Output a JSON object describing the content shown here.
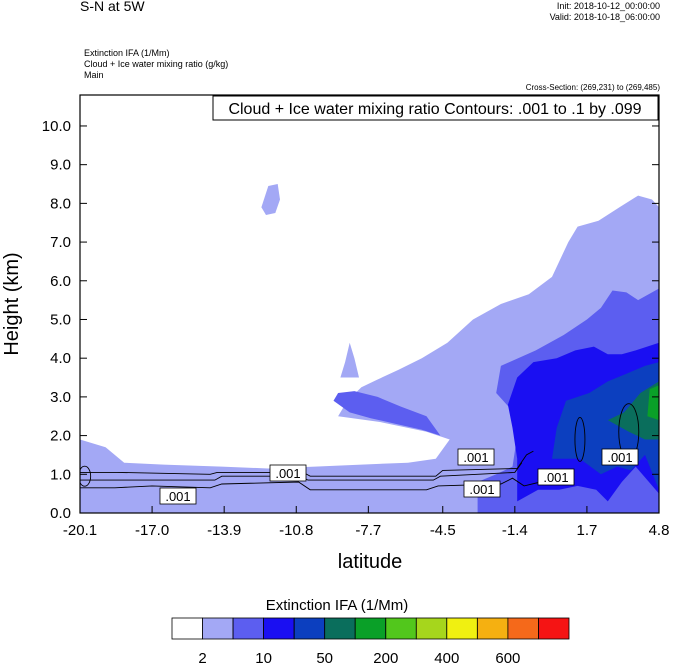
{
  "header": {
    "title": "S-N at 5W",
    "init": "Init: 2018-10-12_00:00:00",
    "valid": "Valid: 2018-10-18_06:00:00",
    "var_line1": "Extinction IFA   (1/Mm)",
    "var_line2": "Cloud + Ice water mixing ratio   (g/kg)",
    "var_line3": "Main",
    "cross_section": "Cross-Section: (269,231) to (269,485)"
  },
  "contour_info": "Cloud + Ice water mixing ratio Contours: .001 to .1 by .099",
  "contour_labels": [
    ".001",
    ".001",
    ".001",
    ".001",
    ".001",
    ".001"
  ],
  "colorbar": {
    "title": "Extinction IFA  (1/Mm)",
    "colors": [
      "#ffffff",
      "#a3a8f5",
      "#5c5ef0",
      "#1a0ff2",
      "#0c3fbf",
      "#0a6e5c",
      "#0aa028",
      "#52c71c",
      "#a6d61c",
      "#f0f011",
      "#f5b011",
      "#f5691a",
      "#f51414"
    ],
    "tick_labels": [
      "2",
      "10",
      "50",
      "200",
      "400",
      "600"
    ]
  },
  "chart_data": {
    "type": "contour",
    "title": "Cloud + Ice water mixing ratio Contours: .001 to .1 by .099",
    "xlabel": "latitude",
    "ylabel": "Height (km)",
    "xlim": [
      -20.1,
      4.8
    ],
    "ylim": [
      0.0,
      10.8
    ],
    "x_ticks": [
      "-20.1",
      "-17.0",
      "-13.9",
      "-10.8",
      "-7.7",
      "-4.5",
      "-1.4",
      "1.7",
      "4.8"
    ],
    "y_ticks": [
      "0.0",
      "1.0",
      "2.0",
      "3.0",
      "4.0",
      "5.0",
      "6.0",
      "7.0",
      "8.0",
      "9.0",
      "10.0"
    ],
    "x_tick_values": [
      -20.1,
      -17.0,
      -13.9,
      -10.8,
      -7.7,
      -4.5,
      -1.4,
      1.7,
      4.8
    ],
    "y_tick_values": [
      0,
      1,
      2,
      3,
      4,
      5,
      6,
      7,
      8,
      9,
      10
    ],
    "filled_regions": [
      {
        "level": "2-10",
        "color": "#a3a8f5",
        "points": [
          [
            -20.1,
            0
          ],
          [
            -20.1,
            1.9
          ],
          [
            -19.0,
            1.7
          ],
          [
            -18.2,
            1.3
          ],
          [
            -16.5,
            1.25
          ],
          [
            -14,
            1.2
          ],
          [
            -12,
            1.15
          ],
          [
            -10,
            1.2
          ],
          [
            -8,
            1.25
          ],
          [
            -6,
            1.3
          ],
          [
            -4.8,
            1.4
          ],
          [
            -4.2,
            1.9
          ],
          [
            -5.2,
            2.1
          ],
          [
            -7.2,
            2.35
          ],
          [
            -9.0,
            2.5
          ],
          [
            -8.6,
            2.9
          ],
          [
            -8.0,
            3.25
          ],
          [
            -7.3,
            3.45
          ],
          [
            -6.4,
            3.7
          ],
          [
            -5.4,
            4.0
          ],
          [
            -4.3,
            4.4
          ],
          [
            -3.2,
            5.0
          ],
          [
            -2.0,
            5.4
          ],
          [
            -0.8,
            5.65
          ],
          [
            0.2,
            6.1
          ],
          [
            0.9,
            7.0
          ],
          [
            1.3,
            7.4
          ],
          [
            2.2,
            7.55
          ],
          [
            3.1,
            7.9
          ],
          [
            3.9,
            8.2
          ],
          [
            4.5,
            8.1
          ],
          [
            4.8,
            7.9
          ],
          [
            4.8,
            0
          ]
        ]
      },
      {
        "level": "2-10",
        "color": "#a3a8f5",
        "points": [
          [
            -8.9,
            3.5
          ],
          [
            -8.7,
            3.9
          ],
          [
            -8.5,
            4.4
          ],
          [
            -8.3,
            4.0
          ],
          [
            -8.1,
            3.5
          ]
        ]
      },
      {
        "level": "2-10",
        "color": "#a3a8f5",
        "points": [
          [
            -12.3,
            7.9
          ],
          [
            -12.0,
            8.45
          ],
          [
            -11.6,
            8.5
          ],
          [
            -11.5,
            8.1
          ],
          [
            -11.7,
            7.75
          ],
          [
            -12.1,
            7.7
          ]
        ]
      },
      {
        "level": "10-50",
        "color": "#5c5ef0",
        "points": [
          [
            -3.0,
            0
          ],
          [
            -3.0,
            0.8
          ],
          [
            -2.2,
            1.0
          ],
          [
            -1.5,
            1.2
          ],
          [
            -1.3,
            2.0
          ],
          [
            -1.6,
            2.7
          ],
          [
            -2.2,
            3.1
          ],
          [
            -2.0,
            3.8
          ],
          [
            -0.5,
            4.2
          ],
          [
            0.7,
            4.6
          ],
          [
            1.7,
            5.0
          ],
          [
            2.3,
            5.3
          ],
          [
            2.8,
            5.75
          ],
          [
            3.4,
            5.7
          ],
          [
            3.9,
            5.5
          ],
          [
            4.8,
            5.8
          ],
          [
            4.8,
            0
          ]
        ]
      },
      {
        "level": "10-50",
        "color": "#5c5ef0",
        "points": [
          [
            -9.2,
            2.9
          ],
          [
            -8.5,
            2.6
          ],
          [
            -7.6,
            2.45
          ],
          [
            -6.5,
            2.3
          ],
          [
            -5.4,
            2.15
          ],
          [
            -4.6,
            2.0
          ],
          [
            -5.2,
            2.5
          ],
          [
            -6.3,
            2.75
          ],
          [
            -7.3,
            3.0
          ],
          [
            -8.3,
            3.15
          ],
          [
            -9.0,
            3.1
          ]
        ]
      },
      {
        "level": "50-200",
        "color": "#1a0ff2",
        "points": [
          [
            -1.3,
            0.3
          ],
          [
            -1.3,
            1.4
          ],
          [
            -1.5,
            2.2
          ],
          [
            -1.7,
            2.8
          ],
          [
            -1.3,
            3.5
          ],
          [
            -0.6,
            3.9
          ],
          [
            0.4,
            4.0
          ],
          [
            1.2,
            4.2
          ],
          [
            2.0,
            4.3
          ],
          [
            2.6,
            4.1
          ],
          [
            3.2,
            4.1
          ],
          [
            3.8,
            4.2
          ],
          [
            4.8,
            4.4
          ],
          [
            4.8,
            0.5
          ],
          [
            3.8,
            1.2
          ],
          [
            3.2,
            0.8
          ],
          [
            2.6,
            0.3
          ],
          [
            2.1,
            0.6
          ],
          [
            1.3,
            0.7
          ],
          [
            0.5,
            0.6
          ],
          [
            -0.4,
            0.6
          ]
        ]
      },
      {
        "level": "200-400",
        "color": "#0c3fbf",
        "points": [
          [
            0.2,
            1.4
          ],
          [
            0.4,
            2.2
          ],
          [
            0.8,
            2.9
          ],
          [
            1.8,
            3.1
          ],
          [
            2.6,
            3.4
          ],
          [
            3.4,
            3.6
          ],
          [
            4.2,
            3.8
          ],
          [
            4.8,
            3.9
          ],
          [
            4.8,
            0.6
          ],
          [
            4.2,
            1.5
          ],
          [
            3.6,
            1.1
          ],
          [
            3.0,
            1.2
          ],
          [
            2.3,
            1.0
          ],
          [
            1.4,
            1.4
          ]
        ]
      },
      {
        "level": "400-600",
        "color": "#0a6e5c",
        "points": [
          [
            2.6,
            2.4
          ],
          [
            3.3,
            2.6
          ],
          [
            4.0,
            3.1
          ],
          [
            4.8,
            3.4
          ],
          [
            4.8,
            1.9
          ],
          [
            4.2,
            1.9
          ],
          [
            3.5,
            2.1
          ]
        ]
      },
      {
        "level": "600+",
        "color": "#0aa028",
        "points": [
          [
            4.3,
            2.5
          ],
          [
            4.4,
            3.2
          ],
          [
            4.8,
            3.3
          ],
          [
            4.8,
            2.4
          ]
        ]
      }
    ],
    "contour_lines": [
      {
        "level": 0.001,
        "points": [
          [
            -20.1,
            1.05
          ],
          [
            -18.5,
            1.05
          ],
          [
            -14.5,
            1.0
          ],
          [
            -14.2,
            1.05
          ],
          [
            -10.5,
            1.05
          ],
          [
            -10.2,
            0.95
          ],
          [
            -4.8,
            0.95
          ],
          [
            -4.5,
            1.1
          ],
          [
            -1.3,
            1.15
          ],
          [
            -0.9,
            1.5
          ],
          [
            -0.6,
            1.6
          ]
        ]
      },
      {
        "level": 0.001,
        "points": [
          [
            -20.1,
            0.85
          ],
          [
            -18.6,
            0.85
          ],
          [
            -14.3,
            0.85
          ],
          [
            -14.0,
            0.95
          ],
          [
            -10.6,
            0.95
          ],
          [
            -10.3,
            0.85
          ],
          [
            -4.9,
            0.85
          ],
          [
            -4.6,
            0.95
          ],
          [
            -1.4,
            1.05
          ],
          [
            -1.1,
            1.3
          ]
        ]
      },
      {
        "level": 0.001,
        "points": [
          [
            -20.1,
            0.65
          ],
          [
            -18.6,
            0.65
          ],
          [
            -17.0,
            0.7
          ],
          [
            -14.5,
            0.65
          ],
          [
            -14.0,
            0.75
          ],
          [
            -10.7,
            0.8
          ],
          [
            -10.2,
            0.6
          ],
          [
            -5.2,
            0.6
          ],
          [
            -4.7,
            0.7
          ],
          [
            -2.0,
            0.75
          ],
          [
            -1.5,
            0.9
          ],
          [
            -1.0,
            0.7
          ],
          [
            -0.3,
            0.8
          ]
        ]
      }
    ]
  }
}
